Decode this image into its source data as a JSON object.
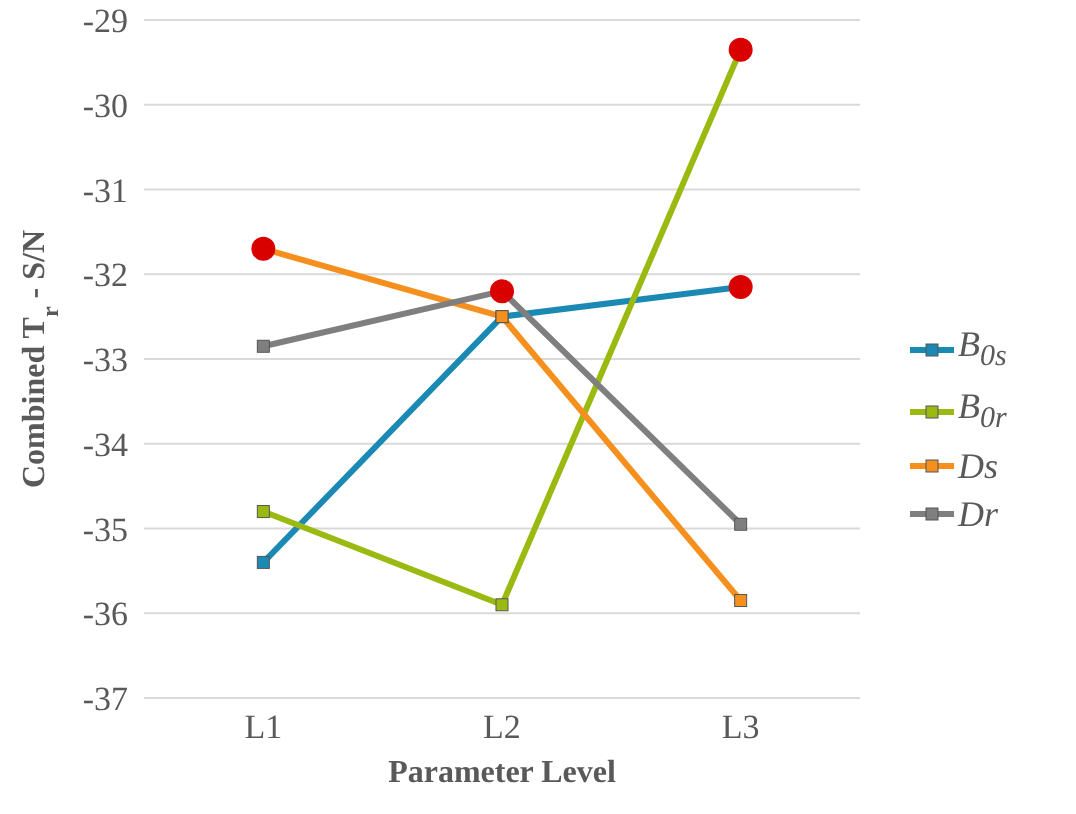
{
  "chart_data": {
    "type": "line",
    "xlabel": "Parameter Level",
    "ylabel": "Combined T$_{r}$ - S/N",
    "categories": [
      "L1",
      "L2",
      "L3"
    ],
    "series": [
      {
        "name": "B$_{0s}$",
        "color": "#1a8ab4",
        "values": [
          -35.4,
          -32.5,
          -32.15
        ]
      },
      {
        "name": "B$_{0r}$",
        "color": "#9aba12",
        "values": [
          -34.8,
          -35.9,
          -29.35
        ]
      },
      {
        "name": "Ds",
        "color": "#f5901e",
        "values": [
          -31.7,
          -32.5,
          -35.85
        ]
      },
      {
        "name": "Dr",
        "color": "#7f7f7f",
        "values": [
          -32.85,
          -32.2,
          -34.95
        ]
      },
      {
        "type": "scatter",
        "marker": "circle",
        "color": "#d90000",
        "x": [
          "L1",
          "L2",
          "L3",
          "L3"
        ],
        "values": [
          -31.7,
          -32.2,
          -29.35,
          -32.15
        ]
      }
    ],
    "ylim": [
      -37,
      -29
    ],
    "yticks": [
      -37,
      -36,
      -35,
      -34,
      -33,
      -32,
      -31,
      -30,
      -29
    ],
    "grid": "y",
    "legend": "right",
    "marker": "square",
    "line_style": "solid"
  }
}
